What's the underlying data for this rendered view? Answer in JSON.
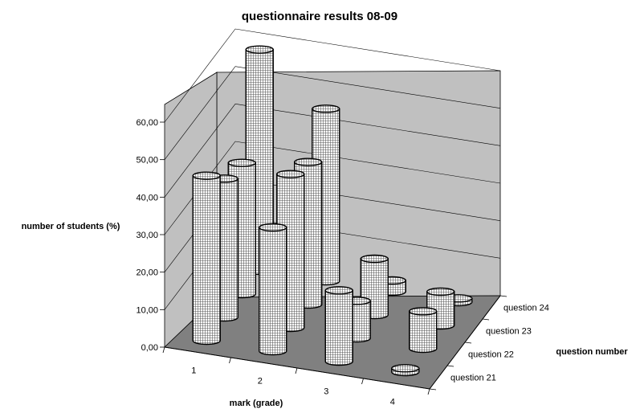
{
  "chart_data": {
    "type": "bar",
    "title": "questionnaire results 08-09",
    "xlabel": "mark (grade)",
    "ylabel": "number of students (%)",
    "zlabel": "question number",
    "categories": [
      "1",
      "2",
      "3",
      "4"
    ],
    "y_ticks": [
      "0,00",
      "10,00",
      "20,00",
      "30,00",
      "40,00",
      "50,00",
      "60,00"
    ],
    "ylim": [
      0,
      60
    ],
    "series": [
      {
        "name": "question 21",
        "values": [
          44,
          33,
          19,
          1
        ]
      },
      {
        "name": "question 22",
        "values": [
          37,
          41,
          10,
          10
        ]
      },
      {
        "name": "question 23",
        "values": [
          35,
          38,
          15,
          9
        ]
      },
      {
        "name": "question 24",
        "values": [
          59,
          46,
          3,
          1
        ]
      }
    ],
    "grid": true,
    "three_d": true
  }
}
